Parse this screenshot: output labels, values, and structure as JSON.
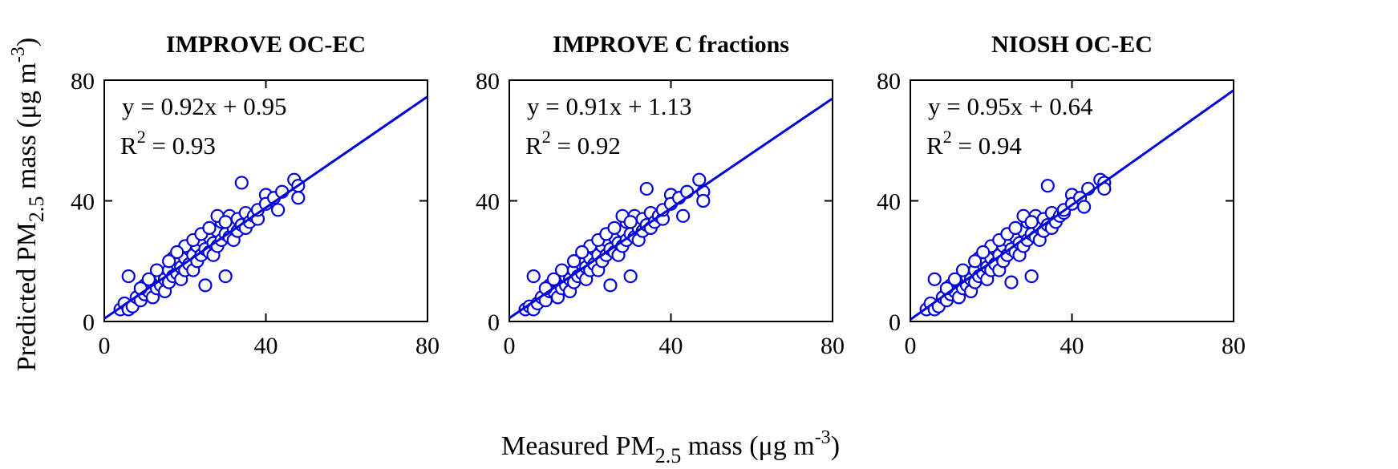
{
  "figure": {
    "xlabel": {
      "main": "Measured PM",
      "sub": "2.5",
      "rest": " mass (μg m",
      "sup": "-3",
      "end": ")"
    },
    "ylabel": {
      "main": "Predicted PM",
      "sub": "2.5",
      "rest": " mass (μg m",
      "sup": "-3",
      "end": ")"
    },
    "colors": {
      "series": "#0000dd",
      "axes": "#000000"
    }
  },
  "chart_data": [
    {
      "type": "scatter",
      "title": "IMPROVE OC-EC",
      "xlim": [
        0,
        80
      ],
      "ylim": [
        0,
        80
      ],
      "xticks": [
        0,
        40,
        80
      ],
      "yticks": [
        0,
        40,
        80
      ],
      "fit": {
        "slope": 0.92,
        "intercept": 0.95,
        "r2_value": "0.93"
      },
      "equation": "y = 0.92x + 0.95",
      "r2_label": "R",
      "r2_sup": "2",
      "r2_text": " = 0.93",
      "points": [
        [
          4,
          4
        ],
        [
          5,
          6
        ],
        [
          6,
          4
        ],
        [
          7,
          5
        ],
        [
          6,
          15
        ],
        [
          8,
          8
        ],
        [
          9,
          7
        ],
        [
          10,
          9
        ],
        [
          10,
          12
        ],
        [
          11,
          10
        ],
        [
          12,
          8
        ],
        [
          12,
          13
        ],
        [
          13,
          11
        ],
        [
          14,
          12
        ],
        [
          14,
          15
        ],
        [
          15,
          14
        ],
        [
          15,
          10
        ],
        [
          16,
          13
        ],
        [
          16,
          17
        ],
        [
          17,
          15
        ],
        [
          17,
          21
        ],
        [
          18,
          16
        ],
        [
          18,
          19
        ],
        [
          19,
          18
        ],
        [
          19,
          14
        ],
        [
          20,
          17
        ],
        [
          20,
          21
        ],
        [
          21,
          19
        ],
        [
          21,
          24
        ],
        [
          22,
          22
        ],
        [
          22,
          17
        ],
        [
          23,
          20
        ],
        [
          23,
          25
        ],
        [
          24,
          22
        ],
        [
          24,
          27
        ],
        [
          25,
          24
        ],
        [
          25,
          12
        ],
        [
          26,
          23
        ],
        [
          26,
          28
        ],
        [
          27,
          26
        ],
        [
          27,
          22
        ],
        [
          28,
          25
        ],
        [
          28,
          30
        ],
        [
          29,
          27
        ],
        [
          29,
          33
        ],
        [
          30,
          15
        ],
        [
          30,
          29
        ],
        [
          31,
          28
        ],
        [
          31,
          35
        ],
        [
          32,
          31
        ],
        [
          32,
          27
        ],
        [
          33,
          30
        ],
        [
          33,
          34
        ],
        [
          34,
          46
        ],
        [
          34,
          32
        ],
        [
          35,
          36
        ],
        [
          35,
          31
        ],
        [
          36,
          33
        ],
        [
          37,
          35
        ],
        [
          38,
          34
        ],
        [
          38,
          37
        ],
        [
          40,
          42
        ],
        [
          40,
          39
        ],
        [
          42,
          41
        ],
        [
          43,
          37
        ],
        [
          44,
          43
        ],
        [
          47,
          47
        ],
        [
          48,
          45
        ],
        [
          48,
          41
        ],
        [
          20,
          25
        ],
        [
          22,
          27
        ],
        [
          24,
          29
        ],
        [
          26,
          31
        ],
        [
          28,
          35
        ],
        [
          30,
          33
        ],
        [
          13,
          17
        ],
        [
          16,
          20
        ],
        [
          18,
          23
        ],
        [
          11,
          14
        ],
        [
          9,
          11
        ]
      ]
    },
    {
      "type": "scatter",
      "title": "IMPROVE C fractions",
      "xlim": [
        0,
        80
      ],
      "ylim": [
        0,
        80
      ],
      "xticks": [
        0,
        40,
        80
      ],
      "yticks": [
        0,
        40,
        80
      ],
      "fit": {
        "slope": 0.91,
        "intercept": 1.13,
        "r2_value": "0.92"
      },
      "equation": "y = 0.91x + 1.13",
      "r2_label": "R",
      "r2_sup": "2",
      "r2_text": " = 0.92",
      "points": [
        [
          4,
          4
        ],
        [
          5,
          5
        ],
        [
          6,
          4
        ],
        [
          7,
          6
        ],
        [
          6,
          15
        ],
        [
          8,
          8
        ],
        [
          9,
          7
        ],
        [
          10,
          10
        ],
        [
          10,
          12
        ],
        [
          11,
          10
        ],
        [
          12,
          8
        ],
        [
          12,
          13
        ],
        [
          13,
          11
        ],
        [
          14,
          12
        ],
        [
          14,
          15
        ],
        [
          15,
          14
        ],
        [
          15,
          10
        ],
        [
          16,
          13
        ],
        [
          16,
          17
        ],
        [
          17,
          15
        ],
        [
          17,
          20
        ],
        [
          18,
          16
        ],
        [
          18,
          19
        ],
        [
          19,
          18
        ],
        [
          19,
          14
        ],
        [
          20,
          17
        ],
        [
          20,
          21
        ],
        [
          21,
          19
        ],
        [
          21,
          24
        ],
        [
          22,
          22
        ],
        [
          22,
          17
        ],
        [
          23,
          20
        ],
        [
          23,
          25
        ],
        [
          24,
          22
        ],
        [
          24,
          27
        ],
        [
          25,
          24
        ],
        [
          25,
          12
        ],
        [
          26,
          23
        ],
        [
          26,
          28
        ],
        [
          27,
          26
        ],
        [
          27,
          22
        ],
        [
          28,
          25
        ],
        [
          28,
          30
        ],
        [
          29,
          27
        ],
        [
          29,
          33
        ],
        [
          30,
          15
        ],
        [
          30,
          29
        ],
        [
          31,
          28
        ],
        [
          31,
          35
        ],
        [
          32,
          31
        ],
        [
          32,
          27
        ],
        [
          33,
          30
        ],
        [
          33,
          34
        ],
        [
          34,
          44
        ],
        [
          34,
          32
        ],
        [
          35,
          36
        ],
        [
          35,
          31
        ],
        [
          36,
          33
        ],
        [
          37,
          35
        ],
        [
          38,
          34
        ],
        [
          38,
          37
        ],
        [
          40,
          42
        ],
        [
          40,
          39
        ],
        [
          42,
          41
        ],
        [
          43,
          35
        ],
        [
          44,
          43
        ],
        [
          47,
          47
        ],
        [
          48,
          43
        ],
        [
          48,
          40
        ],
        [
          20,
          25
        ],
        [
          22,
          27
        ],
        [
          24,
          29
        ],
        [
          26,
          31
        ],
        [
          28,
          35
        ],
        [
          30,
          33
        ],
        [
          13,
          17
        ],
        [
          16,
          20
        ],
        [
          18,
          23
        ],
        [
          11,
          14
        ],
        [
          9,
          11
        ]
      ]
    },
    {
      "type": "scatter",
      "title": "NIOSH OC-EC",
      "xlim": [
        0,
        80
      ],
      "ylim": [
        0,
        80
      ],
      "xticks": [
        0,
        40,
        80
      ],
      "yticks": [
        0,
        40,
        80
      ],
      "fit": {
        "slope": 0.95,
        "intercept": 0.64,
        "r2_value": "0.94"
      },
      "equation": "y = 0.95x + 0.64",
      "r2_label": "R",
      "r2_sup": "2",
      "r2_text": " = 0.94",
      "points": [
        [
          4,
          4
        ],
        [
          5,
          6
        ],
        [
          6,
          4
        ],
        [
          7,
          5
        ],
        [
          6,
          14
        ],
        [
          8,
          8
        ],
        [
          9,
          7
        ],
        [
          10,
          9
        ],
        [
          10,
          12
        ],
        [
          11,
          10
        ],
        [
          12,
          8
        ],
        [
          12,
          13
        ],
        [
          13,
          11
        ],
        [
          14,
          12
        ],
        [
          14,
          15
        ],
        [
          15,
          14
        ],
        [
          15,
          10
        ],
        [
          16,
          13
        ],
        [
          16,
          17
        ],
        [
          17,
          15
        ],
        [
          17,
          21
        ],
        [
          18,
          16
        ],
        [
          18,
          19
        ],
        [
          19,
          18
        ],
        [
          19,
          14
        ],
        [
          20,
          17
        ],
        [
          20,
          21
        ],
        [
          21,
          19
        ],
        [
          21,
          24
        ],
        [
          22,
          22
        ],
        [
          22,
          17
        ],
        [
          23,
          20
        ],
        [
          23,
          25
        ],
        [
          24,
          22
        ],
        [
          24,
          27
        ],
        [
          25,
          24
        ],
        [
          25,
          13
        ],
        [
          26,
          23
        ],
        [
          26,
          28
        ],
        [
          27,
          26
        ],
        [
          27,
          22
        ],
        [
          28,
          25
        ],
        [
          28,
          30
        ],
        [
          29,
          27
        ],
        [
          29,
          33
        ],
        [
          30,
          15
        ],
        [
          30,
          29
        ],
        [
          31,
          28
        ],
        [
          31,
          35
        ],
        [
          32,
          31
        ],
        [
          32,
          27
        ],
        [
          33,
          30
        ],
        [
          33,
          34
        ],
        [
          34,
          45
        ],
        [
          34,
          32
        ],
        [
          35,
          36
        ],
        [
          35,
          31
        ],
        [
          36,
          33
        ],
        [
          37,
          35
        ],
        [
          38,
          36
        ],
        [
          38,
          37
        ],
        [
          40,
          42
        ],
        [
          40,
          39
        ],
        [
          42,
          41
        ],
        [
          43,
          38
        ],
        [
          44,
          44
        ],
        [
          47,
          47
        ],
        [
          48,
          46
        ],
        [
          48,
          44
        ],
        [
          20,
          25
        ],
        [
          22,
          27
        ],
        [
          24,
          29
        ],
        [
          26,
          31
        ],
        [
          28,
          35
        ],
        [
          30,
          33
        ],
        [
          13,
          17
        ],
        [
          16,
          20
        ],
        [
          18,
          23
        ],
        [
          11,
          14
        ],
        [
          9,
          11
        ]
      ]
    }
  ]
}
